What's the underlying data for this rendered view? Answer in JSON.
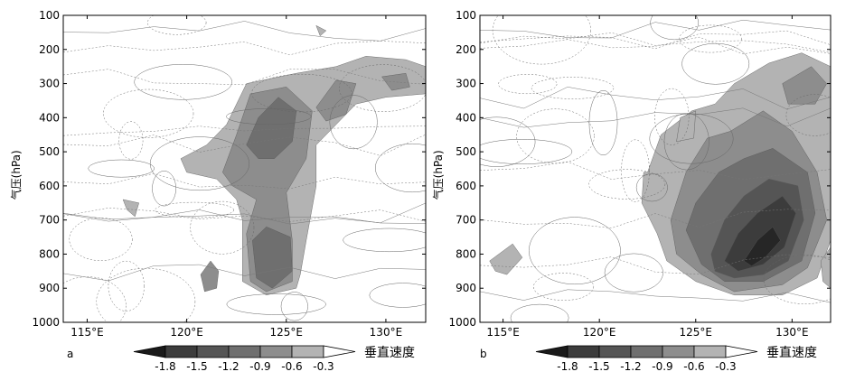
{
  "chart_data": [
    {
      "type": "heatmap",
      "panel_label": "a",
      "ylabel": "气压(hPa)",
      "x_ticks": [
        "115°E",
        "120°E",
        "125°E",
        "130°E"
      ],
      "y_ticks": [
        "100",
        "200",
        "300",
        "400",
        "500",
        "600",
        "700",
        "800",
        "900",
        "1000"
      ],
      "xlim": [
        113.8,
        132.0
      ],
      "ylim": [
        1000,
        100
      ],
      "colorbar": {
        "levels": [
          "-1.8",
          "-1.5",
          "-1.2",
          "-0.9",
          "-0.6",
          "-0.3"
        ],
        "title": "垂直速度"
      },
      "regions": [
        {
          "level": -0.3,
          "points": [
            [
              119.7,
              520
            ],
            [
              121.0,
              480
            ],
            [
              122.0,
              420
            ],
            [
              123.0,
              300
            ],
            [
              125.5,
              270
            ],
            [
              127.5,
              250
            ],
            [
              129.0,
              220
            ],
            [
              131.0,
              230
            ],
            [
              132.0,
              250
            ],
            [
              132.0,
              330
            ],
            [
              130.0,
              340
            ],
            [
              128.5,
              360
            ],
            [
              127.5,
              420
            ],
            [
              126.5,
              480
            ],
            [
              126.5,
              600
            ],
            [
              126.0,
              760
            ],
            [
              125.7,
              860
            ],
            [
              125.5,
              900
            ],
            [
              124.0,
              920
            ],
            [
              122.8,
              880
            ],
            [
              122.8,
              700
            ],
            [
              122.5,
              640
            ],
            [
              121.5,
              580
            ],
            [
              120.0,
              560
            ]
          ]
        },
        {
          "level": -0.6,
          "points": [
            [
              121.8,
              560
            ],
            [
              122.5,
              450
            ],
            [
              123.2,
              330
            ],
            [
              125.0,
              310
            ],
            [
              126.3,
              380
            ],
            [
              126.0,
              520
            ],
            [
              125.0,
              620
            ],
            [
              125.3,
              760
            ],
            [
              125.3,
              880
            ],
            [
              124.0,
              910
            ],
            [
              123.2,
              880
            ],
            [
              123.0,
              740
            ],
            [
              123.5,
              640
            ],
            [
              122.3,
              600
            ]
          ]
        },
        {
          "level": -0.9,
          "points": [
            [
              123.0,
              480
            ],
            [
              123.6,
              400
            ],
            [
              124.6,
              340
            ],
            [
              125.5,
              380
            ],
            [
              125.3,
              470
            ],
            [
              124.4,
              520
            ],
            [
              123.6,
              520
            ]
          ]
        },
        {
          "level": -0.9,
          "points": [
            [
              123.3,
              760
            ],
            [
              124.0,
              720
            ],
            [
              125.2,
              750
            ],
            [
              125.3,
              850
            ],
            [
              124.3,
              900
            ],
            [
              123.5,
              870
            ]
          ]
        },
        {
          "level": -0.6,
          "points": [
            [
              126.5,
              370
            ],
            [
              127.5,
              290
            ],
            [
              128.5,
              300
            ],
            [
              128.0,
              390
            ],
            [
              127.0,
              410
            ]
          ]
        },
        {
          "level": -0.6,
          "points": [
            [
              129.8,
              280
            ],
            [
              131.0,
              270
            ],
            [
              131.2,
              310
            ],
            [
              130.3,
              320
            ]
          ]
        },
        {
          "level": -0.6,
          "points": [
            [
              120.7,
              860
            ],
            [
              121.2,
              820
            ],
            [
              121.6,
              850
            ],
            [
              121.5,
              900
            ],
            [
              120.9,
              910
            ]
          ]
        },
        {
          "level": -0.3,
          "points": [
            [
              116.8,
              640
            ],
            [
              117.6,
              650
            ],
            [
              117.4,
              690
            ],
            [
              117.0,
              670
            ]
          ]
        },
        {
          "level": -0.3,
          "points": [
            [
              126.5,
              130
            ],
            [
              127.0,
              145
            ],
            [
              126.7,
              160
            ]
          ]
        }
      ]
    },
    {
      "type": "heatmap",
      "panel_label": "b",
      "ylabel": "气压(hPa)",
      "x_ticks": [
        "115°E",
        "120°E",
        "125°E",
        "130°E"
      ],
      "y_ticks": [
        "100",
        "200",
        "300",
        "400",
        "500",
        "600",
        "700",
        "800",
        "900",
        "1000"
      ],
      "xlim": [
        113.8,
        132.0
      ],
      "ylim": [
        1000,
        100
      ],
      "colorbar": {
        "levels": [
          "-1.8",
          "-1.5",
          "-1.2",
          "-0.9",
          "-0.6",
          "-0.3"
        ],
        "title": "垂直速度"
      },
      "regions": [
        {
          "level": -0.3,
          "points": [
            [
              122.5,
              560
            ],
            [
              123.2,
              450
            ],
            [
              124.8,
              380
            ],
            [
              126.0,
              360
            ],
            [
              127.0,
              300
            ],
            [
              128.8,
              240
            ],
            [
              130.5,
              210
            ],
            [
              132.0,
              250
            ],
            [
              132.0,
              760
            ],
            [
              131.3,
              870
            ],
            [
              129.5,
              920
            ],
            [
              127.0,
              920
            ],
            [
              125.0,
              880
            ],
            [
              123.5,
              820
            ],
            [
              123.0,
              740
            ],
            [
              122.2,
              650
            ],
            [
              122.3,
              560
            ]
          ]
        },
        {
          "level": -0.6,
          "points": [
            [
              123.7,
              700
            ],
            [
              124.5,
              560
            ],
            [
              125.6,
              460
            ],
            [
              126.8,
              440
            ],
            [
              128.5,
              380
            ],
            [
              130.0,
              440
            ],
            [
              131.3,
              560
            ],
            [
              131.8,
              700
            ],
            [
              130.8,
              840
            ],
            [
              129.5,
              890
            ],
            [
              127.0,
              910
            ],
            [
              125.3,
              860
            ],
            [
              124.0,
              800
            ]
          ]
        },
        {
          "level": -0.9,
          "points": [
            [
              124.5,
              730
            ],
            [
              125.0,
              650
            ],
            [
              126.2,
              560
            ],
            [
              127.5,
              520
            ],
            [
              129.0,
              490
            ],
            [
              130.8,
              560
            ],
            [
              131.2,
              680
            ],
            [
              130.5,
              820
            ],
            [
              128.5,
              880
            ],
            [
              126.5,
              880
            ],
            [
              125.3,
              830
            ]
          ]
        },
        {
          "level": -1.2,
          "points": [
            [
              125.8,
              800
            ],
            [
              126.5,
              700
            ],
            [
              127.5,
              630
            ],
            [
              128.8,
              580
            ],
            [
              130.3,
              600
            ],
            [
              130.6,
              700
            ],
            [
              129.8,
              820
            ],
            [
              128.5,
              860
            ],
            [
              127.0,
              870
            ],
            [
              126.0,
              850
            ]
          ]
        },
        {
          "level": -1.5,
          "points": [
            [
              126.5,
              820
            ],
            [
              127.2,
              740
            ],
            [
              128.2,
              680
            ],
            [
              129.5,
              630
            ],
            [
              130.2,
              680
            ],
            [
              129.6,
              780
            ],
            [
              128.5,
              830
            ],
            [
              127.2,
              850
            ]
          ]
        },
        {
          "level": -1.8,
          "points": [
            [
              127.5,
              820
            ],
            [
              128.2,
              760
            ],
            [
              129.0,
              720
            ],
            [
              129.4,
              760
            ],
            [
              128.6,
              810
            ],
            [
              127.9,
              835
            ]
          ]
        },
        {
          "level": -0.6,
          "points": [
            [
              129.5,
              300
            ],
            [
              131.0,
              250
            ],
            [
              131.8,
              300
            ],
            [
              131.2,
              360
            ],
            [
              129.8,
              360
            ]
          ]
        },
        {
          "level": -0.3,
          "points": [
            [
              124.2,
              400
            ],
            [
              125.0,
              380
            ],
            [
              124.9,
              460
            ],
            [
              124.0,
              470
            ]
          ]
        },
        {
          "level": -0.3,
          "points": [
            [
              114.3,
              820
            ],
            [
              115.5,
              770
            ],
            [
              116.0,
              810
            ],
            [
              115.2,
              860
            ],
            [
              114.6,
              850
            ]
          ]
        },
        {
          "level": -0.3,
          "points": [
            [
              131.5,
              820
            ],
            [
              132.0,
              780
            ],
            [
              132.0,
              900
            ],
            [
              131.6,
              880
            ]
          ]
        }
      ]
    }
  ]
}
